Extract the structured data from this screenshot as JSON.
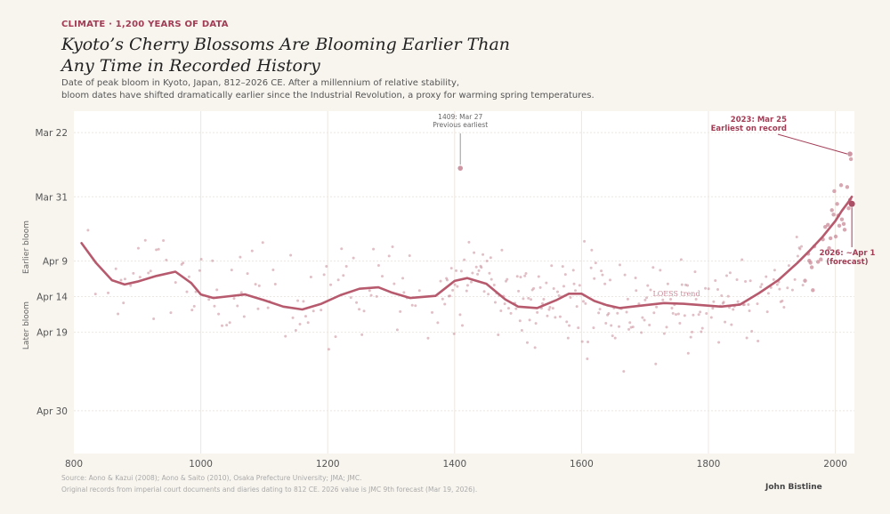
{
  "header": {
    "kicker": "CLIMATE · 1,200 YEARS OF DATA",
    "title_line1": "Kyoto’s Cherry Blossoms Are Blooming Earlier Than",
    "title_line2": "Any Time in Recorded History",
    "subtitle_line1": "Date of peak bloom in Kyoto, Japan, 812–2026 CE. After a millennium of relative stability,",
    "subtitle_line2": "bloom dates have shifted dramatically earlier since the Industrial Revolution, a proxy for warming spring temperatures."
  },
  "footer": {
    "source_line1": "Source: Aono & Kazui (2008); Aono & Saito (2010), Osaka Prefecture University; JMA; JMC.",
    "source_line2": "Original records from imperial court documents and diaries dating to 812 CE. 2026 value is JMC 9th forecast (Mar 19, 2026).",
    "author": "John Bistline"
  },
  "colors": {
    "background": "#f8f5ef",
    "plot_bg": "#ffffff",
    "accent": "#a23c55",
    "points": "#c98a98",
    "trend": "#b75a6e",
    "grid": "#ece7e0"
  },
  "chart_data": {
    "type": "scatter",
    "title": "",
    "xlabel": "",
    "ylabel_upper": "Earlier bloom",
    "ylabel_lower": "Later bloom",
    "y_unit": "day of year",
    "y_inverted": true,
    "grid": true,
    "xlim": [
      800,
      2030
    ],
    "ylim": [
      78,
      126
    ],
    "x_ticks": [
      {
        "value": 800,
        "label": "800"
      },
      {
        "value": 1000,
        "label": "1000"
      },
      {
        "value": 1200,
        "label": "1200"
      },
      {
        "value": 1400,
        "label": "1400"
      },
      {
        "value": 1600,
        "label": "1600"
      },
      {
        "value": 1800,
        "label": "1800"
      },
      {
        "value": 2000,
        "label": "2000"
      }
    ],
    "y_ticks": [
      {
        "value": 81,
        "label": "Mar 22"
      },
      {
        "value": 90,
        "label": "Mar 31"
      },
      {
        "value": 99,
        "label": "Apr 9"
      },
      {
        "value": 104,
        "label": "Apr 14"
      },
      {
        "value": 109,
        "label": "Apr 19"
      },
      {
        "value": 120,
        "label": "Apr 30"
      }
    ],
    "scatter_density": [
      {
        "from": 812,
        "to": 860,
        "every": 10,
        "mean": 102,
        "spread": 9
      },
      {
        "from": 860,
        "to": 1000,
        "every": 4,
        "mean": 101,
        "spread": 10
      },
      {
        "from": 1000,
        "to": 1200,
        "every": 4,
        "mean": 104,
        "spread": 10
      },
      {
        "from": 1200,
        "to": 1380,
        "every": 4,
        "mean": 104,
        "spread": 10
      },
      {
        "from": 1380,
        "to": 1500,
        "every": 2,
        "mean": 102,
        "spread": 10
      },
      {
        "from": 1500,
        "to": 1700,
        "every": 2,
        "mean": 104,
        "spread": 11
      },
      {
        "from": 1700,
        "to": 1880,
        "every": 2,
        "mean": 104,
        "spread": 10
      },
      {
        "from": 1880,
        "to": 2026,
        "every": 2,
        "mean": 99,
        "spread": 7
      }
    ],
    "highlight_points": [
      {
        "year": 1409,
        "doy": 86,
        "label": "1409: Mar 27",
        "note": "Previous earliest"
      },
      {
        "year": 2023,
        "doy": 84,
        "label": "2023: Mar 25",
        "note": "Earliest on record"
      },
      {
        "year": 2026,
        "doy": 91,
        "label": "2026: ~Apr 1",
        "note": "(forecast)"
      }
    ],
    "trend": {
      "name": "LOESS trend",
      "x": [
        812,
        835,
        860,
        880,
        900,
        930,
        960,
        985,
        1000,
        1020,
        1040,
        1070,
        1100,
        1130,
        1160,
        1190,
        1220,
        1250,
        1280,
        1300,
        1330,
        1370,
        1400,
        1420,
        1450,
        1480,
        1500,
        1530,
        1560,
        1580,
        1600,
        1620,
        1640,
        1660,
        1680,
        1700,
        1730,
        1760,
        1790,
        1820,
        1850,
        1880,
        1910,
        1940,
        1960,
        1980,
        2000,
        2010,
        2020,
        2026
      ],
      "y": [
        96.5,
        99.3,
        101.7,
        102.3,
        101.9,
        101.1,
        100.5,
        102.1,
        103.7,
        104.2,
        104,
        103.7,
        104.5,
        105.4,
        105.8,
        105,
        103.8,
        102.9,
        102.7,
        103.4,
        104.2,
        103.9,
        101.8,
        101.4,
        102.2,
        104.4,
        105.4,
        105.6,
        104.5,
        103.6,
        103.6,
        104.6,
        105.2,
        105.6,
        105.4,
        105.2,
        104.9,
        105,
        105.2,
        105.4,
        105.1,
        103.5,
        101.7,
        99.3,
        97.5,
        95.6,
        93.4,
        92,
        90.8,
        90
      ]
    },
    "annotations": [
      {
        "text": "1409: Mar 27"
      },
      {
        "text": "Previous earliest"
      },
      {
        "text": "2023: Mar 25"
      },
      {
        "text": "Earliest on record"
      },
      {
        "text": "2026: ~Apr 1"
      },
      {
        "text": "(forecast)"
      },
      {
        "text": "LOESS trend"
      }
    ]
  }
}
